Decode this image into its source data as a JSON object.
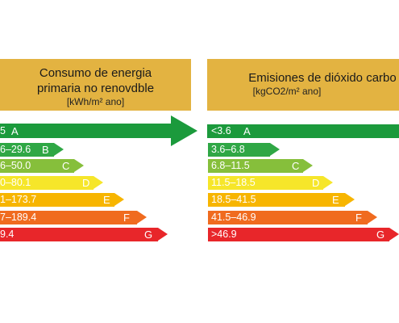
{
  "left_panel": {
    "title": "Consumo de energia\nprimaria no renovdble",
    "unit": "[kWh/m² ano]",
    "grades": [
      {
        "range": "5",
        "letter": "A"
      },
      {
        "range": "6–29.6",
        "letter": "B"
      },
      {
        "range": "6–50.0",
        "letter": "C"
      },
      {
        "range": "0–80.1",
        "letter": "D"
      },
      {
        "range": "1–173.7",
        "letter": "E"
      },
      {
        "range": "7–189.4",
        "letter": "F"
      },
      {
        "range": "9.4",
        "letter": "G"
      }
    ]
  },
  "right_panel": {
    "title": "Emisiones de dióxido carbo",
    "unit": "[kgCO2/m² ano]",
    "grades": [
      {
        "range": "<3.6",
        "letter": "A"
      },
      {
        "range": "3.6–6.8",
        "letter": "B"
      },
      {
        "range": "6.8–11.5",
        "letter": "C"
      },
      {
        "range": "11.5–18.5",
        "letter": "D"
      },
      {
        "range": "18.5–41.5",
        "letter": "E"
      },
      {
        "range": "41.5–46.9",
        "letter": "F"
      },
      {
        "range": ">46.9",
        "letter": "G"
      }
    ]
  },
  "grade_colors": [
    "#1b9a3c",
    "#2fa745",
    "#86bf3b",
    "#f6e62a",
    "#f7b500",
    "#f06b1f",
    "#e8262a"
  ]
}
